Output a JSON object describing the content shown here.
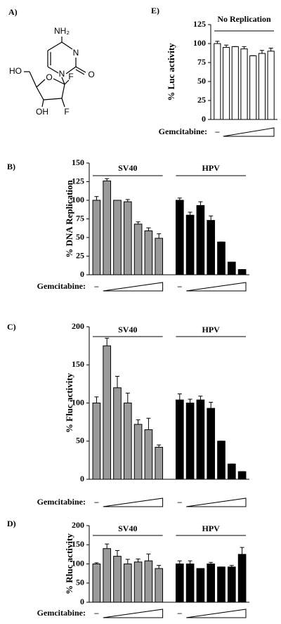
{
  "structure": {
    "label": "A)",
    "atoms": [
      "NH₂",
      "N",
      "O",
      "N",
      "O",
      "HO",
      "OH",
      "F",
      "F"
    ]
  },
  "chart_data": [
    {
      "type": "bar",
      "label": "E)",
      "ylabel": "% Luc activity",
      "ylim": [
        0,
        125
      ],
      "yticks": [
        0,
        25,
        50,
        75,
        100,
        125
      ],
      "treatment": "Gemcitabine:",
      "control": "–",
      "series": [
        {
          "name": "No Replication",
          "color": "#ffffff",
          "values": [
            100,
            95,
            96,
            93,
            84,
            87,
            90
          ],
          "errors": [
            3,
            3,
            0,
            3,
            0,
            4,
            4
          ]
        }
      ]
    },
    {
      "type": "bar",
      "label": "B)",
      "ylabel": "% DNA Replication",
      "ylim": [
        0,
        150
      ],
      "yticks": [
        0,
        25,
        50,
        75,
        100,
        125,
        150
      ],
      "treatment": "Gemcitabine:",
      "control": "–",
      "series": [
        {
          "name": "SV40",
          "color": "#9a9a9a",
          "values": [
            100,
            126,
            100,
            98,
            68,
            59,
            49
          ],
          "errors": [
            5,
            3,
            0,
            3,
            3,
            4,
            6
          ]
        },
        {
          "name": "HPV",
          "color": "#000000",
          "values": [
            100,
            80,
            93,
            73,
            44,
            17,
            7
          ],
          "errors": [
            3,
            4,
            5,
            6,
            0,
            0,
            0
          ]
        }
      ]
    },
    {
      "type": "bar",
      "label": "C)",
      "ylabel": "% Fluc activity",
      "ylim": [
        0,
        200
      ],
      "yticks": [
        0,
        50,
        100,
        150,
        200
      ],
      "treatment": "Gemcitabine:",
      "control": "–",
      "series": [
        {
          "name": "SV40",
          "color": "#9a9a9a",
          "values": [
            100,
            175,
            120,
            100,
            72,
            65,
            42
          ],
          "errors": [
            8,
            10,
            15,
            13,
            6,
            15,
            3
          ]
        },
        {
          "name": "HPV",
          "color": "#000000",
          "values": [
            104,
            100,
            104,
            93,
            50,
            20,
            10
          ],
          "errors": [
            8,
            5,
            5,
            8,
            0,
            0,
            0
          ]
        }
      ]
    },
    {
      "type": "bar",
      "label": "D)",
      "ylabel": "% Rluc activity",
      "ylim": [
        0,
        200
      ],
      "yticks": [
        0,
        50,
        100,
        150,
        200
      ],
      "treatment": "Gemcitabine:",
      "control": "–",
      "series": [
        {
          "name": "SV40",
          "color": "#9a9a9a",
          "values": [
            100,
            140,
            120,
            100,
            105,
            108,
            88
          ],
          "errors": [
            3,
            12,
            15,
            12,
            8,
            18,
            8
          ]
        },
        {
          "name": "HPV",
          "color": "#000000",
          "values": [
            100,
            100,
            88,
            100,
            92,
            92,
            125
          ],
          "errors": [
            8,
            8,
            0,
            4,
            0,
            4,
            18
          ]
        }
      ]
    }
  ]
}
